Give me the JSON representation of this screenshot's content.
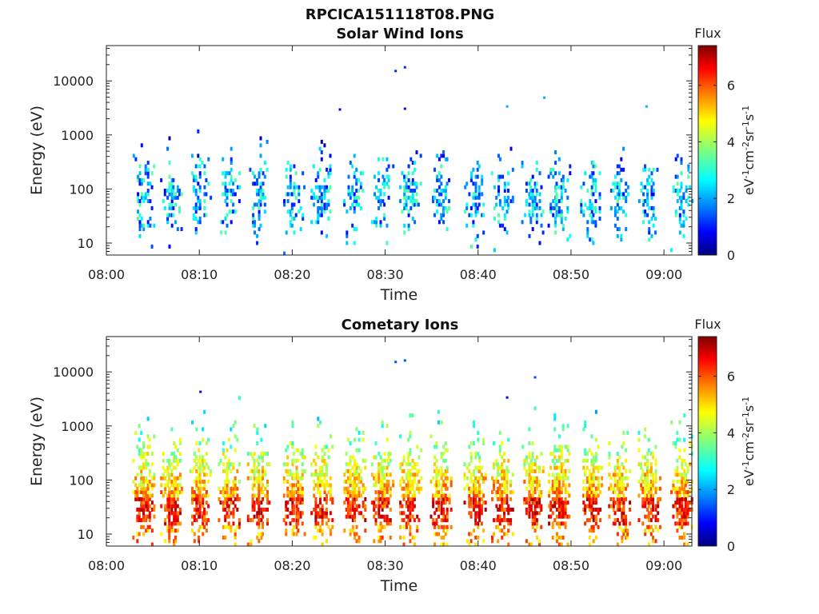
{
  "figure_title": "RPCICA151118T08.PNG",
  "colors": {
    "colormap": [
      "#00007f",
      "#0000ff",
      "#007fff",
      "#00ffff",
      "#7fff7f",
      "#ffff00",
      "#ff7f00",
      "#ff0000",
      "#7f0000"
    ],
    "axis": "#222222",
    "background": "#ffffff"
  },
  "chart_data": [
    {
      "type": "heatmap",
      "title": "Solar Wind Ions",
      "xlabel": "Time",
      "ylabel": "Energy (eV)",
      "x_ticks": [
        "08:00",
        "08:10",
        "08:20",
        "08:30",
        "08:40",
        "08:50",
        "09:00"
      ],
      "y_ticks": [
        "10",
        "100",
        "1000",
        "10000"
      ],
      "y_scale": "log",
      "xlim": [
        "08:00",
        "09:03"
      ],
      "ylim": [
        6,
        45000
      ],
      "colorbar": {
        "title": "Flux",
        "label": "eV-1cm-2sr-1s-1",
        "ticks": [
          "0",
          "2",
          "4",
          "6"
        ],
        "range": [
          0,
          7.4
        ]
      },
      "bursts_minutes": [
        3.9,
        6.9,
        10.0,
        13.1,
        16.3,
        20.1,
        23.1,
        26.6,
        29.6,
        32.6,
        35.9,
        39.6,
        42.5,
        45.8,
        48.6,
        52.1,
        55.1,
        58.3,
        61.8
      ],
      "typical_flux": 2.2,
      "isolated_points": [
        {
          "t": "08:31",
          "energy": 15000,
          "flux": 1.2
        },
        {
          "t": "08:32",
          "energy": 17500,
          "flux": 1.2
        },
        {
          "t": "08:47",
          "energy": 4800,
          "flux": 2.2
        },
        {
          "t": "08:43",
          "energy": 3300,
          "flux": 2.2
        },
        {
          "t": "08:58",
          "energy": 3300,
          "flux": 2.2
        },
        {
          "t": "08:25",
          "energy": 2900,
          "flux": 0.8
        },
        {
          "t": "08:32",
          "energy": 3000,
          "flux": 0.8
        }
      ]
    },
    {
      "type": "heatmap",
      "title": "Cometary Ions",
      "xlabel": "Time",
      "ylabel": "Energy (eV)",
      "x_ticks": [
        "08:00",
        "08:10",
        "08:20",
        "08:30",
        "08:40",
        "08:50",
        "09:00"
      ],
      "y_ticks": [
        "10",
        "100",
        "1000",
        "10000"
      ],
      "y_scale": "log",
      "xlim": [
        "08:00",
        "09:03"
      ],
      "ylim": [
        6,
        45000
      ],
      "colorbar": {
        "title": "Flux",
        "label": "eV-1cm-2sr-1s-1",
        "ticks": [
          "0",
          "2",
          "4",
          "6"
        ],
        "range": [
          0,
          7.4
        ]
      },
      "bursts_minutes": [
        3.9,
        6.9,
        10.0,
        13.1,
        16.3,
        20.1,
        23.1,
        26.6,
        29.6,
        32.6,
        35.9,
        39.6,
        42.5,
        45.8,
        48.6,
        52.1,
        55.1,
        58.3,
        61.8
      ],
      "typical_flux": 5.0,
      "peak_energy_band_eV": [
        15,
        45
      ],
      "isolated_points": [
        {
          "t": "08:31",
          "energy": 15000,
          "flux": 1.5
        },
        {
          "t": "08:32",
          "energy": 16000,
          "flux": 1.5
        },
        {
          "t": "08:46",
          "energy": 7800,
          "flux": 1.5
        },
        {
          "t": "08:10",
          "energy": 4200,
          "flux": 1.0
        },
        {
          "t": "08:43",
          "energy": 3300,
          "flux": 1.0
        }
      ]
    }
  ]
}
